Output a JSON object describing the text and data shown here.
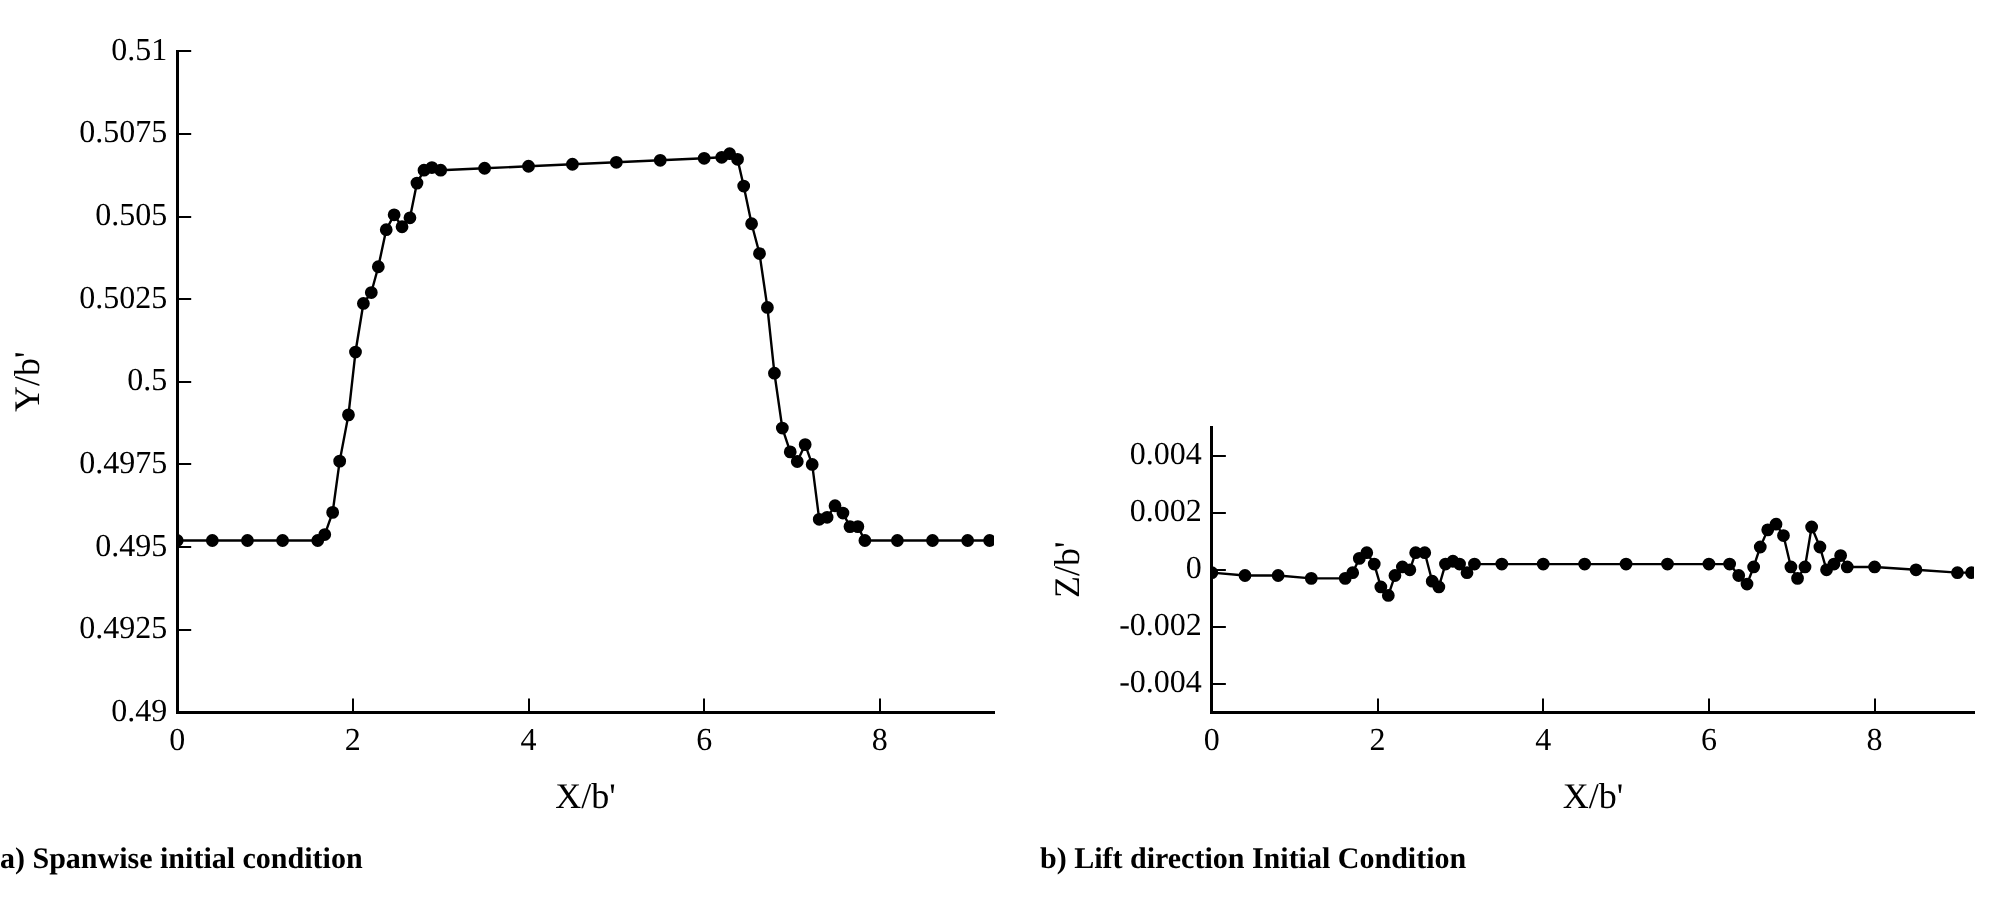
{
  "chart_data": [
    {
      "type": "line",
      "title": "a) Spanwise initial condition",
      "xlabel": "X/b'",
      "ylabel": "Y/b'",
      "marker": "circle",
      "line_style": "solid",
      "legend": false,
      "grid": false,
      "xlim": [
        0,
        9.3
      ],
      "xticks": [
        0,
        2,
        4,
        6,
        8
      ],
      "ylim": [
        0.49,
        0.51
      ],
      "yticks": [
        0.49,
        0.4925,
        0.495,
        0.4975,
        0.5,
        0.5025,
        0.505,
        0.5075,
        0.51
      ],
      "series": [
        {
          "color": "#000000",
          "x": [
            0,
            0.4,
            0.8,
            1.2,
            1.6,
            1.68,
            1.77,
            1.85,
            1.95,
            2.03,
            2.12,
            2.21,
            2.29,
            2.38,
            2.47,
            2.56,
            2.65,
            2.73,
            2.81,
            2.9,
            3.0,
            3.5,
            4.0,
            4.5,
            5.0,
            5.5,
            6.0,
            6.2,
            6.29,
            6.38,
            6.45,
            6.54,
            6.63,
            6.72,
            6.8,
            6.89,
            6.98,
            7.06,
            7.15,
            7.23,
            7.31,
            7.4,
            7.49,
            7.58,
            7.66,
            7.75,
            7.83,
            8.2,
            8.6,
            9.0,
            9.25
          ],
          "values": [
            0.4952,
            0.4952,
            0.4952,
            0.4952,
            0.4952,
            0.49538,
            0.49605,
            0.4976,
            0.499,
            0.5009,
            0.50237,
            0.5027,
            0.50348,
            0.5046,
            0.50505,
            0.50469,
            0.50496,
            0.50601,
            0.5064,
            0.50648,
            0.5064,
            0.50646,
            0.50652,
            0.50658,
            0.50664,
            0.5067,
            0.50676,
            0.50679,
            0.5069,
            0.50673,
            0.50592,
            0.50478,
            0.50388,
            0.50225,
            0.50026,
            0.4986,
            0.49788,
            0.49759,
            0.4981,
            0.4975,
            0.49584,
            0.4959,
            0.49625,
            0.49603,
            0.49562,
            0.49562,
            0.4952,
            0.4952,
            0.4952,
            0.4952,
            0.4952
          ]
        }
      ]
    },
    {
      "type": "line",
      "title": "b) Lift direction Initial Condition",
      "xlabel": "X/b'",
      "ylabel": "Z/b'",
      "marker": "circle",
      "line_style": "solid",
      "legend": false,
      "grid": false,
      "xlim": [
        0,
        9.2
      ],
      "xticks": [
        0,
        2,
        4,
        6,
        8
      ],
      "ylim": [
        -0.005,
        0.005
      ],
      "yticks": [
        -0.004,
        -0.002,
        0,
        0.002,
        0.004
      ],
      "series": [
        {
          "color": "#000000",
          "x": [
            0,
            0.4,
            0.8,
            1.2,
            1.61,
            1.7,
            1.78,
            1.87,
            1.96,
            2.04,
            2.13,
            2.21,
            2.3,
            2.39,
            2.46,
            2.57,
            2.66,
            2.74,
            2.82,
            2.91,
            2.99,
            3.08,
            3.17,
            3.5,
            4.0,
            4.5,
            5.0,
            5.5,
            6.0,
            6.25,
            6.36,
            6.46,
            6.54,
            6.62,
            6.71,
            6.81,
            6.9,
            6.99,
            7.07,
            7.16,
            7.24,
            7.34,
            7.42,
            7.51,
            7.59,
            7.67,
            8.0,
            8.5,
            9.0,
            9.17
          ],
          "values": [
            -0.0001,
            -0.0002,
            -0.0002,
            -0.0003,
            -0.0003,
            -0.0001,
            0.0004,
            0.0006,
            0.0002,
            -0.0006,
            -0.0009,
            -0.0002,
            0.0001,
            0,
            0.0006,
            0.0006,
            -0.0004,
            -0.0006,
            0.0002,
            0.0003,
            0.0002,
            -0.0001,
            0.0002,
            0.0002,
            0.0002,
            0.0002,
            0.0002,
            0.0002,
            0.0002,
            0.0002,
            -0.0002,
            -0.0005,
            0.0001,
            0.0008,
            0.0014,
            0.0016,
            0.0012,
            0.0001,
            -0.0003,
            0.0001,
            0.0015,
            0.0008,
            0,
            0.0002,
            0.0005,
            0.0001,
            0.0001,
            0,
            -0.0001,
            -0.0001
          ]
        }
      ]
    }
  ]
}
